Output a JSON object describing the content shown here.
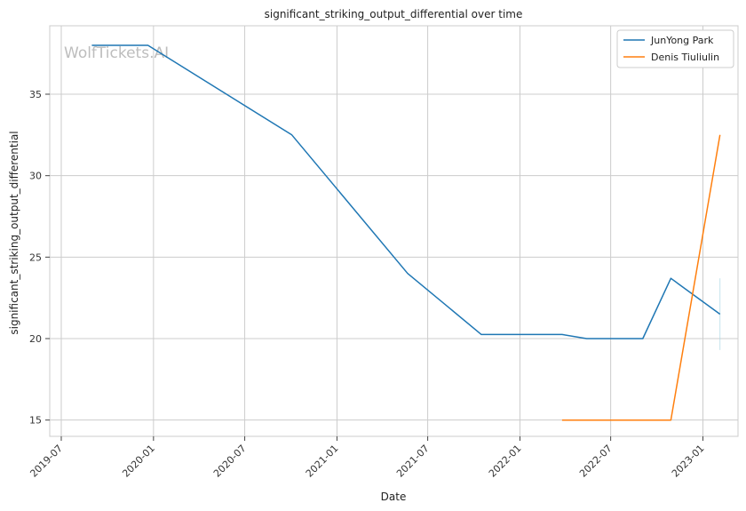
{
  "chart_data": {
    "type": "line",
    "title": "significant_striking_output_differential over time",
    "xlabel": "Date",
    "ylabel": "significant_striking_output_differential",
    "watermark": "WolfTickets.AI",
    "x_ticks": [
      "2019-07",
      "2020-01",
      "2020-07",
      "2021-01",
      "2021-07",
      "2022-01",
      "2022-07",
      "2023-01"
    ],
    "y_ticks": [
      15,
      20,
      25,
      30,
      35
    ],
    "xlim": [
      "2019-06-08",
      "2023-03-12"
    ],
    "ylim": [
      14.0,
      39.2
    ],
    "grid": true,
    "legend_position": "top-right",
    "series": [
      {
        "name": "JunYong Park",
        "color": "#1f77b4",
        "points": [
          {
            "x": "2019-08-31",
            "y": 38.0
          },
          {
            "x": "2019-12-21",
            "y": 38.0
          },
          {
            "x": "2020-10-03",
            "y": 32.5
          },
          {
            "x": "2021-05-22",
            "y": 24.0
          },
          {
            "x": "2021-10-16",
            "y": 20.25
          },
          {
            "x": "2022-03-26",
            "y": 20.25
          },
          {
            "x": "2022-05-14",
            "y": 20.0
          },
          {
            "x": "2022-09-03",
            "y": 20.0
          },
          {
            "x": "2022-10-29",
            "y": 23.7
          },
          {
            "x": "2023-02-04",
            "y": 21.5
          }
        ]
      },
      {
        "name": "Denis Tiuliulin",
        "color": "#ff7f0e",
        "points": [
          {
            "x": "2022-03-26",
            "y": 15.0
          },
          {
            "x": "2022-10-29",
            "y": 15.0
          },
          {
            "x": "2023-02-04",
            "y": 32.5
          }
        ]
      }
    ],
    "annotations": [
      {
        "type": "vertical-band",
        "x": "2023-02-04",
        "y_range": [
          19.3,
          23.7
        ],
        "color": "#add8e6"
      }
    ]
  }
}
